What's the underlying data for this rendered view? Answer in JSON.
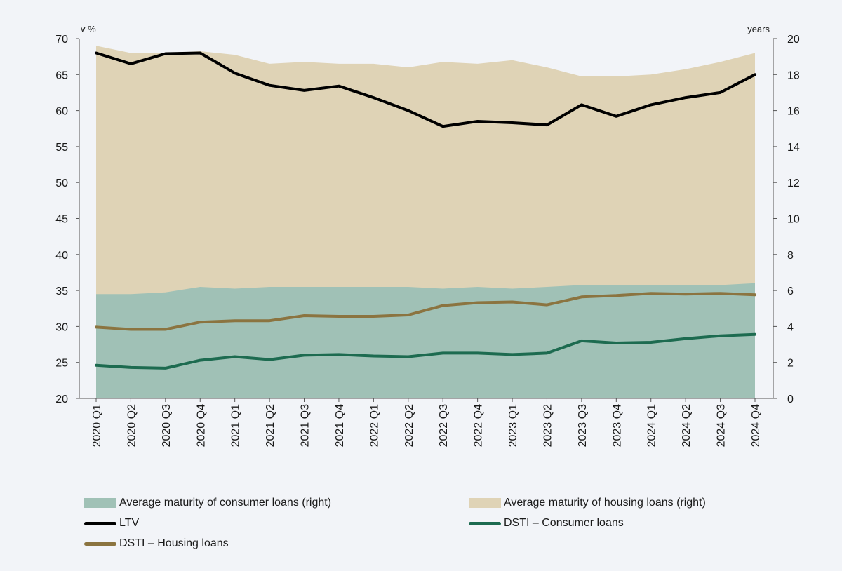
{
  "chart_data": {
    "type": "area",
    "y_left_label": "v %",
    "y_right_label": "years",
    "y_left_range": [
      20,
      70
    ],
    "y_left_ticks": [
      "20",
      "25",
      "30",
      "35",
      "40",
      "45",
      "50",
      "55",
      "60",
      "65",
      "70"
    ],
    "y_right_range": [
      0,
      20
    ],
    "y_right_ticks": [
      "0",
      "2",
      "4",
      "6",
      "8",
      "10",
      "12",
      "14",
      "16",
      "18",
      "20"
    ],
    "categories": [
      "2020 Q1",
      "2020 Q2",
      "2020 Q3",
      "2020 Q4",
      "2021 Q1",
      "2021 Q2",
      "2021 Q3",
      "2021 Q4",
      "2022 Q1",
      "2022 Q2",
      "2022 Q3",
      "2022 Q4",
      "2023 Q1",
      "2023 Q2",
      "2023 Q3",
      "2023 Q4",
      "2024 Q1",
      "2024 Q2",
      "2024 Q3",
      "2024 Q4"
    ],
    "series": [
      {
        "name": "Average maturity of housing loans (right)",
        "kind": "area",
        "axis": "right",
        "color": "#dfd3b6",
        "values": [
          19.6,
          19.2,
          19.2,
          19.3,
          19.1,
          18.6,
          18.7,
          18.6,
          18.6,
          18.4,
          18.7,
          18.6,
          18.8,
          18.4,
          17.9,
          17.9,
          18.0,
          18.3,
          18.7,
          19.2
        ]
      },
      {
        "name": "Average maturity of consumer loans (right)",
        "kind": "area",
        "axis": "right",
        "color": "#a0c1b6",
        "values": [
          5.8,
          5.8,
          5.9,
          6.2,
          6.1,
          6.2,
          6.2,
          6.2,
          6.2,
          6.2,
          6.1,
          6.2,
          6.1,
          6.2,
          6.3,
          6.3,
          6.3,
          6.3,
          6.3,
          6.4
        ]
      },
      {
        "name": "LTV",
        "kind": "line",
        "axis": "left",
        "color": "#000000",
        "values": [
          68.0,
          66.5,
          67.9,
          68.0,
          65.2,
          63.5,
          62.8,
          63.4,
          61.8,
          60.0,
          57.8,
          58.5,
          58.3,
          58.0,
          60.8,
          59.2,
          60.8,
          61.8,
          62.5,
          65.0
        ]
      },
      {
        "name": "DSTI – Consumer loans",
        "kind": "line",
        "axis": "left",
        "color": "#1d6b50",
        "values": [
          24.6,
          24.3,
          24.2,
          25.3,
          25.8,
          25.4,
          26.0,
          26.1,
          25.9,
          25.8,
          26.3,
          26.3,
          26.1,
          26.3,
          28.0,
          27.7,
          27.8,
          28.3,
          28.7,
          28.9
        ]
      },
      {
        "name": "DSTI – Housing loans",
        "kind": "line",
        "axis": "left",
        "color": "#8b7440",
        "values": [
          29.9,
          29.6,
          29.6,
          30.6,
          30.8,
          30.8,
          31.5,
          31.4,
          31.4,
          31.6,
          32.9,
          33.3,
          33.4,
          33.0,
          34.1,
          34.3,
          34.6,
          34.5,
          34.6,
          34.4
        ]
      }
    ]
  },
  "legend": {
    "consumer_maturity": "Average maturity of consumer loans (right)",
    "housing_maturity": "Average maturity of housing loans (right)",
    "ltv": "LTV",
    "dsti_consumer": "DSTI – Consumer loans",
    "dsti_housing": "DSTI – Housing loans"
  },
  "colors": {
    "housing_area": "#dfd3b6",
    "consumer_area": "#a0c1b6",
    "ltv": "#000000",
    "dsti_consumer": "#1d6b50",
    "dsti_housing": "#8b7440"
  }
}
